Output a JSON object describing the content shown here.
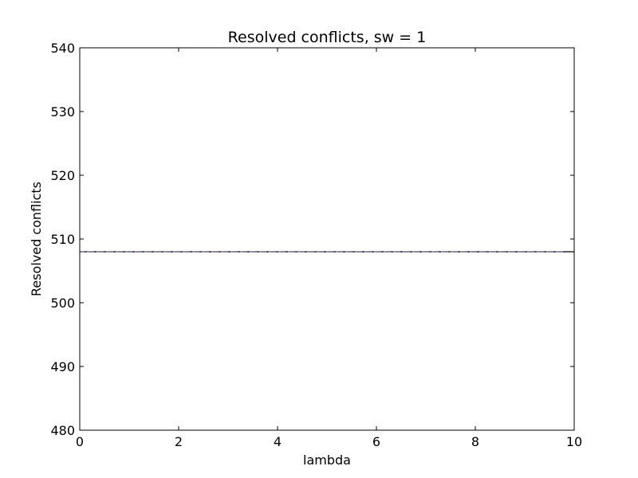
{
  "chart_data": {
    "type": "line",
    "title": "Resolved conflicts, sw = 1",
    "xlabel": "lambda",
    "ylabel": "Resolved conflicts",
    "xlim": [
      0,
      10
    ],
    "ylim": [
      480,
      540
    ],
    "x_ticks": [
      0,
      2,
      4,
      6,
      8,
      10
    ],
    "y_ticks": [
      480,
      490,
      500,
      510,
      520,
      530,
      540
    ],
    "grid": false,
    "series": [
      {
        "x": [
          0,
          10
        ],
        "y": [
          508,
          508
        ],
        "color": "#000000",
        "style": "solid"
      },
      {
        "x": [
          0,
          9.8
        ],
        "y": [
          508,
          508
        ],
        "color": "#c05050",
        "style": "dashed"
      },
      {
        "x": [
          0,
          9.8
        ],
        "y": [
          508,
          508
        ],
        "color": "#5050c0",
        "style": "dashed"
      }
    ]
  }
}
